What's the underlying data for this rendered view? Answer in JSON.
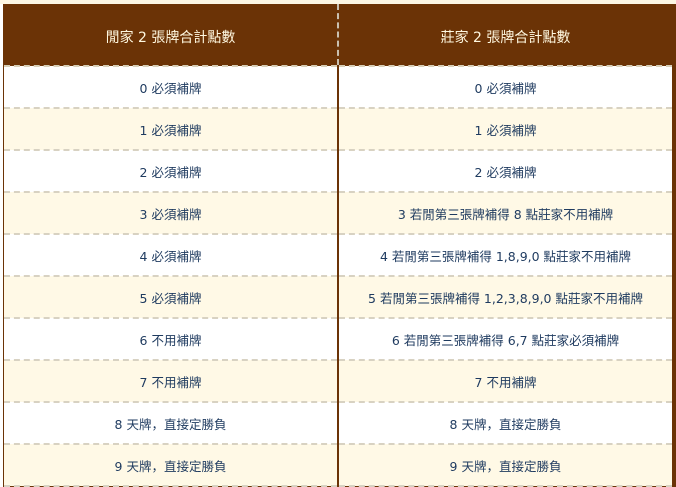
{
  "headers": [
    "閒家 2 張牌合計點數",
    "莊家 2 張牌合計點數"
  ],
  "rows": [
    [
      "0 必須補牌",
      "0 必須補牌"
    ],
    [
      "1 必須補牌",
      "1 必須補牌"
    ],
    [
      "2 必須補牌",
      "2 必須補牌"
    ],
    [
      "3 必須補牌",
      "3 若閒第三張牌補得 8 點莊家不用補牌"
    ],
    [
      "4 必須補牌",
      "4 若閒第三張牌補得 1,8,9,0 點莊家不用補牌"
    ],
    [
      "5 必須補牌",
      "5 若閒第三張牌補得 1,2,3,8,9,0 點莊家不用補牌"
    ],
    [
      "6 不用補牌",
      "6 若閒第三張牌補得 6,7 點莊家必須補牌"
    ],
    [
      "7 不用補牌",
      "7 不用補牌"
    ],
    [
      "8 天牌，直接定勝負",
      "8 天牌，直接定勝負"
    ],
    [
      "9 天牌，直接定勝負",
      "9 天牌，直接定勝負"
    ]
  ],
  "colors": {
    "header": "#6b3306",
    "row_alt": "#fff9e6",
    "text": "#1e3a5f"
  }
}
